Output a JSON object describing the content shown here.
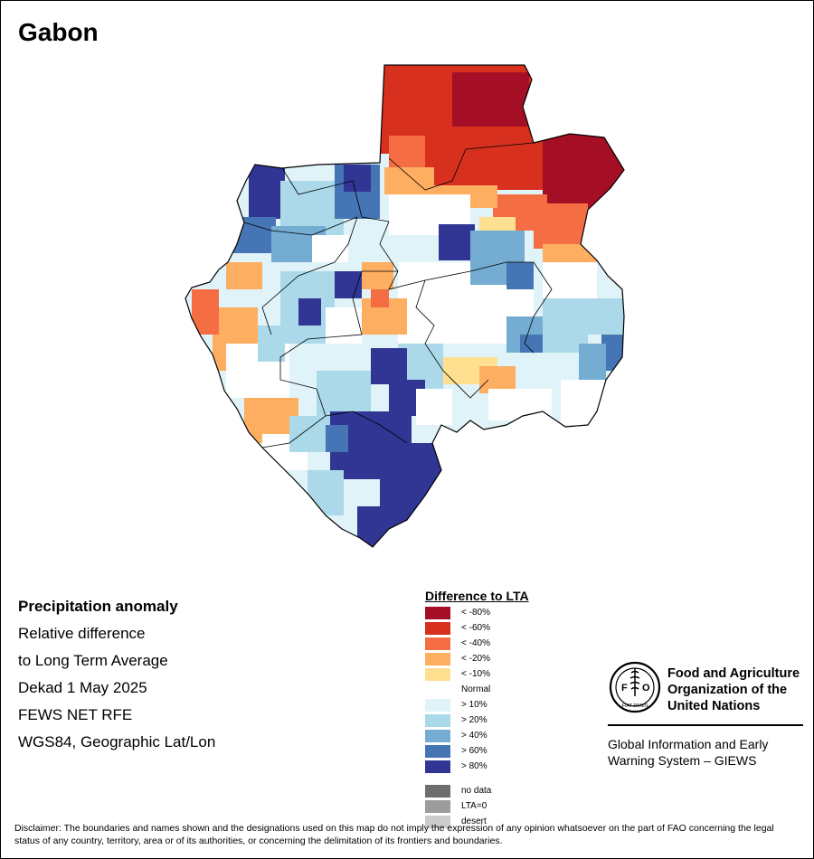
{
  "title": "Gabon",
  "info": {
    "heading": "Precipitation anomaly",
    "lines": [
      "Relative difference",
      "to Long Term Average",
      "Dekad 1 May 2025",
      "FEWS NET RFE",
      "WGS84, Geographic Lat/Lon"
    ]
  },
  "legend": {
    "title": "Difference to LTA",
    "items": [
      {
        "label": "< -80%",
        "color": "#a50f26"
      },
      {
        "label": "< -60%",
        "color": "#d7301f"
      },
      {
        "label": "< -40%",
        "color": "#f46d43"
      },
      {
        "label": "< -20%",
        "color": "#fdae61"
      },
      {
        "label": "< -10%",
        "color": "#fee090"
      },
      {
        "label": "Normal",
        "color": "#ffffff"
      },
      {
        "label": "> 10%",
        "color": "#e0f3f8"
      },
      {
        "label": "> 20%",
        "color": "#abd9e9"
      },
      {
        "label": "> 40%",
        "color": "#74add1"
      },
      {
        "label": "> 60%",
        "color": "#4575b4"
      },
      {
        "label": "> 80%",
        "color": "#313695"
      }
    ],
    "extra": [
      {
        "label": "no data",
        "color": "#6e6e6e"
      },
      {
        "label": "LTA=0",
        "color": "#9c9c9c"
      },
      {
        "label": "desert",
        "color": "#cccccc"
      }
    ]
  },
  "logo": {
    "org_name": "Food and Agriculture Organization of the United Nations",
    "emblem_text": "FAO",
    "emblem_motto": "FIAT PANIS",
    "system_name": "Global Information and Early Warning System – GIEWS"
  },
  "disclaimer": "Disclaimer: The boundaries and names shown and the designations used on this map do not imply the expression of any opinion whatsoever on the part of FAO concerning the legal status of any country, territory, area or of its authorities, or concerning the delimitation of its frontiers and boundaries."
}
